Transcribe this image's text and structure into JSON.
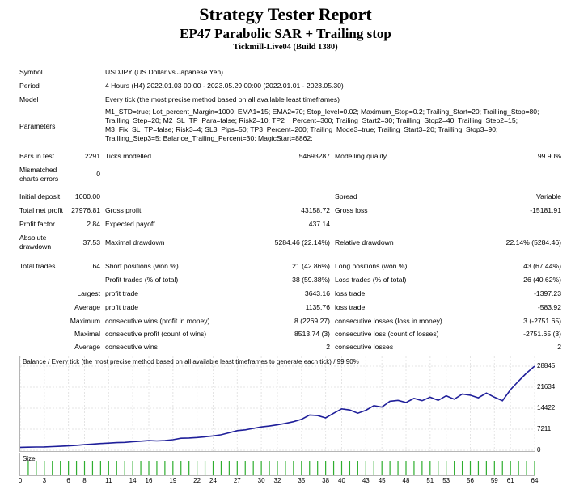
{
  "report": {
    "title": "Strategy Tester Report",
    "subtitle": "EP47 Parabolic SAR + Trailing stop",
    "server": "Tickmill-Live04 (Build 1380)"
  },
  "settings": {
    "symbol_label": "Symbol",
    "symbol": "USDJPY (US Dollar vs Japanese Yen)",
    "period_label": "Period",
    "period": "4 Hours (H4) 2022.01.03 00:00 - 2023.05.29 00:00 (2022.01.01 - 2023.05.30)",
    "model_label": "Model",
    "model": "Every tick (the most precise method based on all available least timeframes)",
    "parameters_label": "Parameters",
    "parameters": [
      "M1_STD=true; Lot_percent_Margin=1000; EMA1=15; EMA2=70; Stop_level=0.02; Maximum_Stop=0.2; Trailing_Start=20; Trailling_Stop=80;",
      "Trailling_Step=20; M2_SL_TP_Para=false; Risk2=10; TP2__Percent=300; Trailing_Start2=30; Trailling_Stop2=40; Trailling_Step2=15;",
      "M3_Fix_SL_TP=false; Risk3=4; SL3_Pips=50; TP3_Percent=200; Trailing_Mode3=true; Trailing_Start3=20; Trailling_Stop3=90;",
      "Trailling_Step3=5; Balance_Trailing_Percent=30; MagicStart=8862;"
    ]
  },
  "stats": {
    "bars_label": "Bars in test",
    "bars": "2291",
    "ticks_label": "Ticks modelled",
    "ticks": "54693287",
    "quality_label": "Modelling quality",
    "quality": "99.90%",
    "mismatch_label_1": "Mismatched",
    "mismatch_label_2": "charts errors",
    "mismatch": "0",
    "deposit_label": "Initial deposit",
    "deposit": "1000.00",
    "spread_label": "Spread",
    "spread": "Variable",
    "net_label": "Total net profit",
    "net": "27976.81",
    "gross_profit_label": "Gross profit",
    "gross_profit": "43158.72",
    "gross_loss_label": "Gross loss",
    "gross_loss": "-15181.91",
    "pf_label": "Profit factor",
    "pf": "2.84",
    "payoff_label": "Expected payoff",
    "payoff": "437.14",
    "abs_dd_label_1": "Absolute",
    "abs_dd_label_2": "drawdown",
    "abs_dd": "37.53",
    "max_dd_label": "Maximal drawdown",
    "max_dd": "5284.46 (22.14%)",
    "rel_dd_label": "Relative drawdown",
    "rel_dd": "22.14% (5284.46)",
    "trades_label": "Total trades",
    "trades": "64",
    "short_label": "Short positions (won %)",
    "short": "21 (42.86%)",
    "long_label": "Long positions (won %)",
    "long": "43 (67.44%)",
    "profit_trades_label": "Profit trades (% of total)",
    "profit_trades": "38 (59.38%)",
    "loss_trades_label": "Loss trades (% of total)",
    "loss_trades": "26 (40.62%)",
    "largest_label": "Largest",
    "average_label": "Average",
    "maximum_label": "Maximum",
    "maximal_label": "Maximal",
    "largest_profit_label": "profit trade",
    "largest_profit": "3643.16",
    "largest_loss_label": "loss trade",
    "largest_loss": "-1397.23",
    "avg_profit_label": "profit trade",
    "avg_profit": "1135.76",
    "avg_loss_label": "loss trade",
    "avg_loss": "-583.92",
    "max_cons_wins_label": "consecutive wins (profit in money)",
    "max_cons_wins": "8 (2269.27)",
    "max_cons_losses_label": "consecutive losses (loss in money)",
    "max_cons_losses": "3 (-2751.65)",
    "maximal_profit_label": "consecutive profit (count of wins)",
    "maximal_profit": "8513.74 (3)",
    "maximal_loss_label": "consecutive loss (count of losses)",
    "maximal_loss": "-2751.65 (3)",
    "avg_cons_wins_label": "consecutive wins",
    "avg_cons_wins": "2",
    "avg_cons_losses_label": "consecutive losses",
    "avg_cons_losses": "2"
  },
  "chart_data": {
    "type": "line",
    "title": "Balance / Every tick (the most precise method based on all available least timeframes to generate each tick) / 99.90%",
    "size_label": "Size",
    "y_ticks": [
      "28845",
      "21634",
      "14422",
      "7211",
      "0"
    ],
    "ylim": [
      0,
      28845
    ],
    "x_ticks": [
      "0",
      "3",
      "6",
      "8",
      "11",
      "14",
      "16",
      "19",
      "22",
      "24",
      "27",
      "30",
      "32",
      "35",
      "38",
      "40",
      "43",
      "45",
      "48",
      "51",
      "53",
      "56",
      "59",
      "61",
      "64"
    ],
    "xlim": [
      0,
      64
    ],
    "color": "#1f1f9a",
    "size_color": "#2fae2f",
    "series": [
      {
        "x": [
          0,
          1,
          2,
          3,
          4,
          5,
          6,
          7,
          8,
          9,
          10,
          11,
          12,
          13,
          14,
          15,
          16,
          17,
          18,
          19,
          20,
          21,
          22,
          23,
          24,
          25,
          26,
          27,
          28,
          29,
          30,
          31,
          32,
          33,
          34,
          35,
          36,
          37,
          38,
          39,
          40,
          41,
          42,
          43,
          44,
          45,
          46,
          47,
          48,
          49,
          50,
          51,
          52,
          53,
          54,
          55,
          56,
          57,
          58,
          59,
          60,
          61,
          62,
          63,
          64
        ],
        "y": [
          1000,
          1050,
          1100,
          1150,
          1250,
          1350,
          1500,
          1700,
          1900,
          2100,
          2300,
          2450,
          2600,
          2700,
          2900,
          3100,
          3300,
          3200,
          3300,
          3600,
          4100,
          4200,
          4350,
          4600,
          4900,
          5300,
          6000,
          6700,
          7000,
          7500,
          8000,
          8300,
          8700,
          9200,
          9800,
          10600,
          12100,
          11900,
          11100,
          12700,
          14200,
          13800,
          12700,
          13700,
          15300,
          14800,
          16800,
          17100,
          16400,
          17800,
          17000,
          18200,
          17100,
          18700,
          17500,
          19300,
          18900,
          18000,
          19600,
          18200,
          17000,
          20800,
          23700,
          26500,
          28845
        ]
      }
    ]
  }
}
